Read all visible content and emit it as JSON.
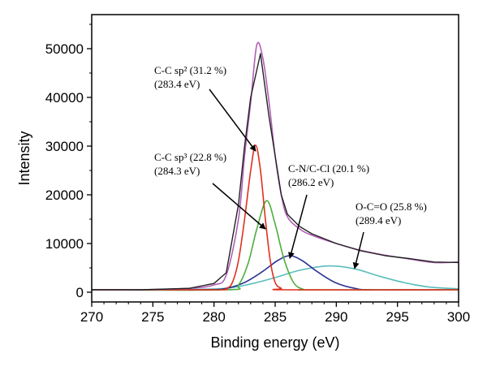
{
  "chart_data": {
    "type": "line",
    "title": "",
    "xlabel": "Binding energy (eV)",
    "ylabel": "Intensity",
    "xlim": [
      270,
      300
    ],
    "ylim": [
      -2000,
      57000
    ],
    "xticks": [
      270,
      275,
      280,
      285,
      290,
      295,
      300
    ],
    "yticks": [
      0,
      10000,
      20000,
      30000,
      40000,
      50000
    ],
    "grid": false,
    "legend": "none",
    "series": [
      {
        "key": "raw",
        "color": "#222222",
        "points": [
          [
            270,
            500
          ],
          [
            274,
            500
          ],
          [
            278,
            800
          ],
          [
            280,
            1800
          ],
          [
            281,
            4000
          ],
          [
            282,
            18000
          ],
          [
            282.5,
            30000
          ],
          [
            283,
            40000
          ],
          [
            283.8,
            49000
          ],
          [
            284.5,
            36000
          ],
          [
            285,
            28000
          ],
          [
            285.5,
            20000
          ],
          [
            286,
            16000
          ],
          [
            287,
            13500
          ],
          [
            288,
            12000
          ],
          [
            290,
            10000
          ],
          [
            292,
            8500
          ],
          [
            294,
            7500
          ],
          [
            296,
            6900
          ],
          [
            298,
            6200
          ],
          [
            300,
            6100
          ]
        ]
      },
      {
        "key": "envelope",
        "color": "#b05fb5",
        "points": [
          [
            270,
            500
          ],
          [
            274,
            500
          ],
          [
            278,
            800
          ],
          [
            280,
            1500
          ],
          [
            281,
            3500
          ],
          [
            282,
            15000
          ],
          [
            282.5,
            28000
          ],
          [
            283,
            39000
          ],
          [
            283.5,
            50800
          ],
          [
            284,
            48000
          ],
          [
            284.5,
            39000
          ],
          [
            285,
            28000
          ],
          [
            285.5,
            20000
          ],
          [
            286,
            15500
          ],
          [
            287,
            13000
          ],
          [
            288,
            11700
          ],
          [
            290,
            10000
          ],
          [
            292,
            8600
          ],
          [
            294,
            7600
          ],
          [
            296,
            6800
          ],
          [
            298,
            6100
          ],
          [
            300,
            6200
          ]
        ]
      },
      {
        "key": "sp2",
        "color": "#e0301e",
        "points": [
          [
            270,
            500
          ],
          [
            280,
            500
          ],
          [
            281,
            800
          ],
          [
            281.5,
            2000
          ],
          [
            282,
            6500
          ],
          [
            282.5,
            15000
          ],
          [
            283,
            25000
          ],
          [
            283.4,
            30200
          ],
          [
            283.8,
            25000
          ],
          [
            284.2,
            15000
          ],
          [
            284.6,
            6500
          ],
          [
            285,
            2000
          ],
          [
            285.5,
            800
          ],
          [
            286,
            500
          ],
          [
            300,
            500
          ]
        ]
      },
      {
        "key": "sp3",
        "color": "#4caf3a",
        "points": [
          [
            270,
            500
          ],
          [
            281,
            500
          ],
          [
            282,
            1500
          ],
          [
            282.8,
            6000
          ],
          [
            283.5,
            13000
          ],
          [
            284.3,
            18800
          ],
          [
            285,
            14000
          ],
          [
            285.7,
            7000
          ],
          [
            286.5,
            2000
          ],
          [
            287.3,
            600
          ],
          [
            288,
            500
          ],
          [
            300,
            500
          ]
        ]
      },
      {
        "key": "cn",
        "color": "#2c3494",
        "points": [
          [
            270,
            500
          ],
          [
            279,
            500
          ],
          [
            281,
            800
          ],
          [
            282.5,
            2000
          ],
          [
            284,
            4300
          ],
          [
            285.2,
            6500
          ],
          [
            286.2,
            7500
          ],
          [
            287.2,
            6500
          ],
          [
            288.4,
            4300
          ],
          [
            289.9,
            2000
          ],
          [
            291.5,
            800
          ],
          [
            293,
            500
          ],
          [
            300,
            500
          ]
        ]
      },
      {
        "key": "oco",
        "color": "#5bbcbd",
        "points": [
          [
            270,
            500
          ],
          [
            278,
            600
          ],
          [
            281,
            800
          ],
          [
            283,
            1700
          ],
          [
            285,
            3000
          ],
          [
            287,
            4500
          ],
          [
            289.4,
            5400
          ],
          [
            291.5,
            4800
          ],
          [
            293.5,
            3300
          ],
          [
            295.5,
            2000
          ],
          [
            297.5,
            1100
          ],
          [
            300,
            700
          ]
        ]
      }
    ],
    "annotations": [
      {
        "line1": "C-C sp² (31.2 %)",
        "line2": "(283.4 eV)",
        "points_to": [
          283.4,
          29000
        ]
      },
      {
        "line1": "C-C sp³ (22.8 %)",
        "line2": "(284.3 eV)",
        "points_to": [
          284.2,
          13000
        ]
      },
      {
        "line1": "C-N/C-Cl (20.1 %)",
        "line2": "(286.2 eV)",
        "points_to": [
          286.2,
          7000
        ]
      },
      {
        "line1": "O-C=O (25.8 %)",
        "line2": "(289.4 eV)",
        "points_to": [
          291.5,
          4900
        ]
      }
    ]
  }
}
